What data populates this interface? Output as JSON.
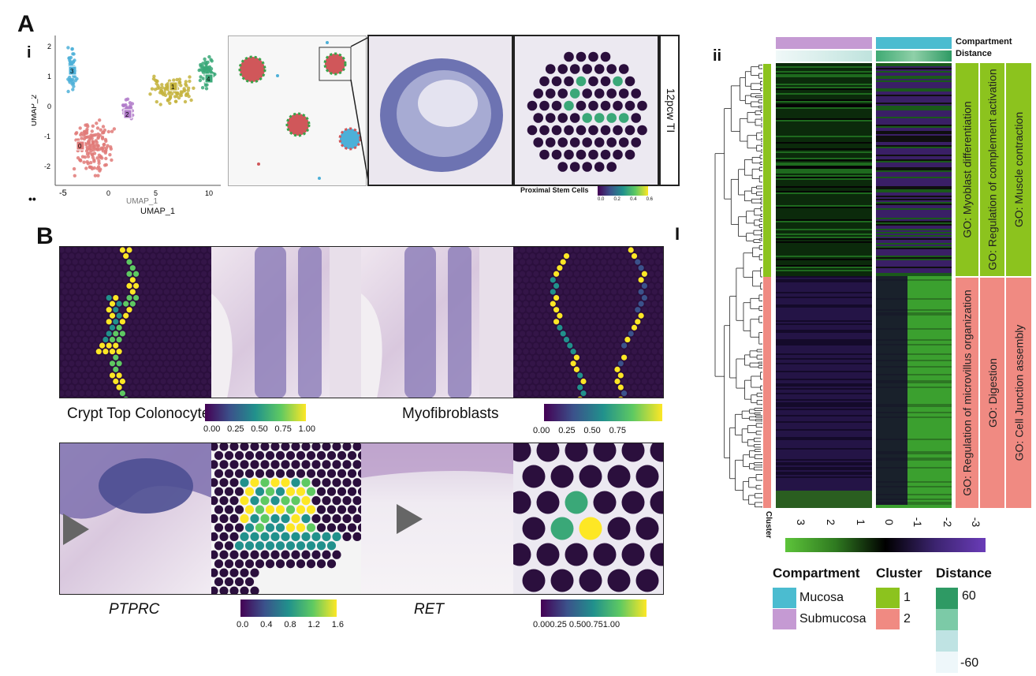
{
  "panels": {
    "A": {
      "letter": "A",
      "i_label": "i",
      "ii_label": "ii",
      "dots_label": "••",
      "umap": {
        "xlabel_faint": "UMAP_1",
        "xlabel": "UMAP_1",
        "ylabel": "UMAP_2",
        "xticks": [
          "-5",
          "0",
          "5",
          "10"
        ],
        "yticks": [
          "2",
          "1",
          "0",
          "-1",
          "-2"
        ],
        "cluster_tags": [
          "3",
          "1",
          "4",
          "2",
          "0"
        ]
      },
      "sample_label": "12pcw TI",
      "stem_legend": {
        "title": "Proximal Stem Cells",
        "ticks": [
          "0.0",
          "0.2",
          "0.4",
          "0.6"
        ]
      }
    },
    "B": {
      "letter": "B",
      "crypt": {
        "label": "Crypt Top Colonocytes",
        "ticks": [
          "0.00",
          "0.25",
          "0.50",
          "0.75",
          "1.00"
        ]
      },
      "myo": {
        "label": "Myofibroblasts",
        "ticks": [
          "0.00",
          "0.25",
          "0.50",
          "0.75"
        ]
      },
      "ptprc": {
        "label": "PTPRC",
        "ticks": [
          "0.0",
          "0.4",
          "0.8",
          "1.2",
          "1.6"
        ]
      },
      "ret": {
        "label": "RET",
        "ticks": [
          "0.00",
          "0.25",
          "0.50",
          "0.75",
          "1.00"
        ],
        "ticks_display": "0.000.25 0.500.751.00"
      }
    },
    "C_marker": "I"
  },
  "heatmap": {
    "top_labels": [
      "Compartment",
      "Distance"
    ],
    "cluster_label": "Cluster",
    "go_terms_cluster1": [
      "GO: Myoblast differentiation",
      "GO: Regulation of complement activation",
      "GO: Muscle contraction"
    ],
    "go_terms_cluster2": [
      "GO: Regulation of microvillus organization",
      "GO: Digestion",
      "GO: Cell Junction assembly"
    ],
    "colorbar_ticks": [
      "3",
      "2",
      "1",
      "0",
      "-1",
      "-2",
      "-3"
    ],
    "colors": {
      "green": "#5dc43a",
      "black": "#000000",
      "purple": "#6a3cb8",
      "mucosa": "#4bbcd0",
      "submucosa": "#c59ad3",
      "cluster1": "#8cc31e",
      "cluster2": "#f08a82"
    }
  },
  "legends": {
    "compartment": {
      "title": "Compartment",
      "items": [
        "Mucosa",
        "Submucosa"
      ]
    },
    "cluster": {
      "title": "Cluster",
      "items": [
        "1",
        "2"
      ]
    },
    "distance": {
      "title": "Distance",
      "max": "60",
      "min": "-60"
    }
  }
}
